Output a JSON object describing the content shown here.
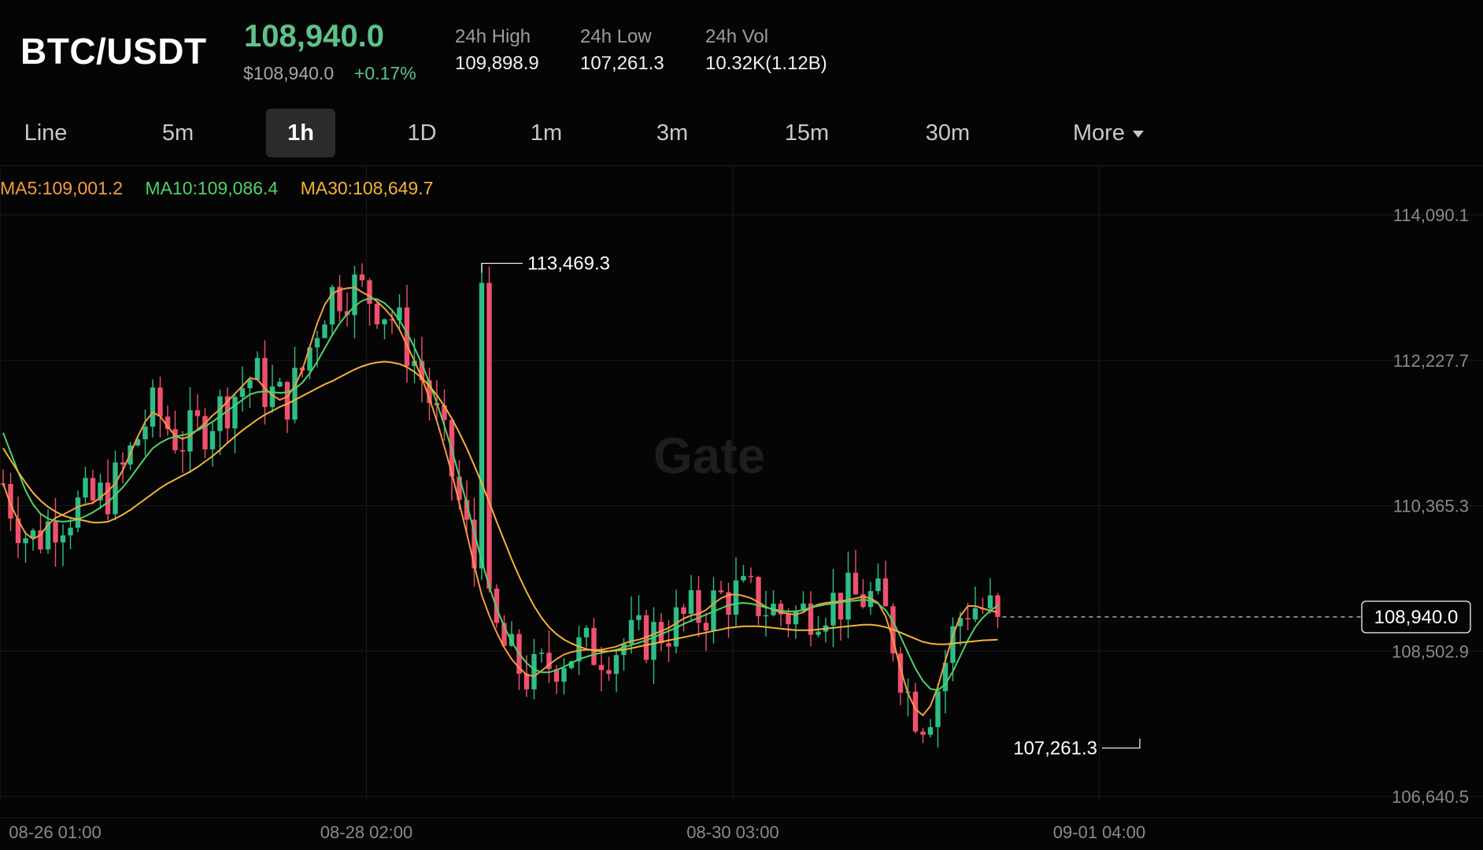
{
  "header": {
    "pair": "BTC/USDT",
    "price": "108,940.0",
    "sub_price": "$108,940.0",
    "change": "+0.17%",
    "stats": [
      {
        "label": "24h High",
        "value": "109,898.9"
      },
      {
        "label": "24h Low",
        "value": "107,261.3"
      },
      {
        "label": "24h Vol",
        "value": "10.32K(1.12B)"
      }
    ]
  },
  "tabs": [
    {
      "label": "Line"
    },
    {
      "label": "5m"
    },
    {
      "label": "1h",
      "active": true
    },
    {
      "label": "1D"
    },
    {
      "label": "1m"
    },
    {
      "label": "3m"
    },
    {
      "label": "15m"
    },
    {
      "label": "30m"
    },
    {
      "label": "More"
    }
  ],
  "ma": {
    "ma5": "MA5:109,001.2",
    "ma10": "MA10:109,086.4",
    "ma30": "MA30:108,649.7"
  },
  "colors": {
    "up": "#2ebd85",
    "down": "#f0506e",
    "ma5": "#f49b42",
    "ma10": "#4fd16a",
    "ma30": "#f2b338",
    "grid": "#1a1a1a"
  },
  "watermark": "Gate",
  "chart_data": {
    "type": "candlestick",
    "y_ticks": [
      "114,090.1",
      "112,227.7",
      "110,365.3",
      "108,502.9",
      "106,640.5"
    ],
    "ylim": [
      106640.5,
      114090.1
    ],
    "x_ticks": [
      {
        "label": "08-26 01:00",
        "index": 0
      },
      {
        "label": "08-28 02:00",
        "index": 49
      },
      {
        "label": "08-30 03:00",
        "index": 98
      },
      {
        "label": "09-01 04:00",
        "index": 147
      }
    ],
    "max_label": "113,469.3",
    "max_index": 64,
    "max_value": 113469.3,
    "min_label": "107,261.3",
    "min_index": 152,
    "min_value": 107261.3,
    "last_price": 108940.0,
    "last_price_label": "108,940.0",
    "series": [
      {
        "name": "MA5",
        "values": [
          110650,
          110380,
          110180,
          110010,
          109940,
          109990,
          110120,
          110210,
          110250,
          110300,
          110350,
          110380,
          110400,
          110470,
          110550,
          110650,
          110820,
          111030,
          111250,
          111440,
          111560,
          111510,
          111380,
          111260,
          111220,
          111260,
          111340,
          111420,
          111520,
          111600,
          111700,
          111800,
          111900,
          112000,
          111980,
          111870,
          111780,
          111720,
          111760,
          111900,
          112100,
          112400,
          112700,
          112940,
          113080,
          113130,
          113150,
          113160,
          113100,
          113050,
          112980,
          112890,
          112780,
          112620,
          112420,
          112220,
          112000,
          111740,
          111450,
          111120,
          110780,
          110400,
          110010,
          109600,
          109220,
          108960,
          108740,
          108550,
          108400,
          108290,
          108200,
          108180,
          108250,
          108330,
          108400,
          108460,
          108490,
          108510,
          108520,
          108520,
          108520,
          108540,
          108560,
          108600,
          108630,
          108650,
          108680,
          108720,
          108760,
          108800,
          108860,
          108920,
          108960,
          108980,
          109030,
          109110,
          109180,
          109220,
          109230,
          109210,
          109180,
          109130,
          109070,
          109030,
          109000,
          108980,
          108970,
          109000,
          109060,
          109100,
          109120,
          109130,
          109140,
          109160,
          109180,
          109200,
          109180,
          109120,
          108950,
          108650,
          108280,
          107960,
          107760,
          107680,
          107800,
          108050,
          108380,
          108700,
          108950,
          109080,
          109080,
          109050,
          109020,
          109001.2
        ]
      },
      {
        "name": "MA10",
        "values": [
          111300,
          111050,
          110800,
          110560,
          110380,
          110260,
          110200,
          110170,
          110160,
          110170,
          110190,
          110230,
          110280,
          110340,
          110410,
          110500,
          110600,
          110720,
          110850,
          110980,
          111100,
          111170,
          111220,
          111250,
          111270,
          111290,
          111330,
          111380,
          111440,
          111510,
          111580,
          111650,
          111720,
          111790,
          111820,
          111830,
          111820,
          111810,
          111820,
          111860,
          111940,
          112060,
          112210,
          112380,
          112550,
          112700,
          112820,
          112920,
          112990,
          113020,
          113010,
          112960,
          112870,
          112740,
          112580,
          112390,
          112180,
          111940,
          111680,
          111390,
          111080,
          110740,
          110390,
          110020,
          109660,
          109330,
          109050,
          108820,
          108620,
          108470,
          108350,
          108270,
          108230,
          108230,
          108260,
          108300,
          108350,
          108400,
          108430,
          108460,
          108480,
          108500,
          108520,
          108550,
          108580,
          108610,
          108640,
          108680,
          108720,
          108760,
          108800,
          108850,
          108890,
          108930,
          108970,
          109010,
          109050,
          109090,
          109110,
          109120,
          109110,
          109090,
          109060,
          109040,
          109020,
          109010,
          109010,
          109030,
          109060,
          109080,
          109100,
          109110,
          109130,
          109140,
          109150,
          109160,
          109150,
          109110,
          109030,
          108880,
          108690,
          108480,
          108280,
          108120,
          108020,
          108000,
          108080,
          108240,
          108440,
          108640,
          108810,
          108930,
          109020,
          109086.4
        ]
      },
      {
        "name": "MA30",
        "values": [
          111100,
          110950,
          110800,
          110660,
          110530,
          110430,
          110350,
          110290,
          110240,
          110210,
          110190,
          110170,
          110150,
          110150,
          110160,
          110200,
          110250,
          110310,
          110380,
          110450,
          110520,
          110590,
          110650,
          110700,
          110750,
          110800,
          110860,
          110930,
          111000,
          111080,
          111170,
          111250,
          111330,
          111400,
          111470,
          111530,
          111580,
          111630,
          111670,
          111720,
          111770,
          111820,
          111870,
          111920,
          111960,
          112010,
          112060,
          112110,
          112150,
          112180,
          112200,
          112210,
          112200,
          112180,
          112140,
          112080,
          112000,
          111900,
          111780,
          111640,
          111480,
          111300,
          111100,
          110880,
          110650,
          110410,
          110160,
          109920,
          109680,
          109460,
          109260,
          109080,
          108930,
          108810,
          108720,
          108650,
          108600,
          108560,
          108530,
          108510,
          108500,
          108500,
          108510,
          108520,
          108540,
          108560,
          108580,
          108600,
          108620,
          108640,
          108660,
          108680,
          108700,
          108720,
          108740,
          108760,
          108780,
          108800,
          108810,
          108820,
          108820,
          108820,
          108810,
          108800,
          108790,
          108780,
          108770,
          108770,
          108770,
          108780,
          108790,
          108800,
          108810,
          108820,
          108830,
          108840,
          108840,
          108830,
          108810,
          108780,
          108740,
          108700,
          108660,
          108620,
          108600,
          108590,
          108590,
          108600,
          108610,
          108620,
          108630,
          108640,
          108645,
          108649.7
        ]
      }
    ]
  }
}
